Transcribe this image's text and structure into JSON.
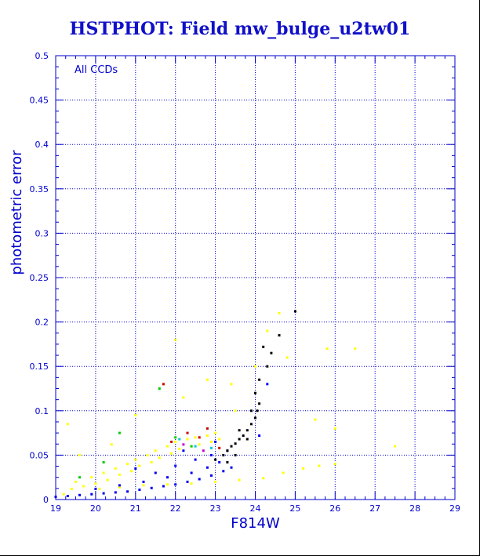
{
  "title": "HSTPHOT: Field mw_bulge_u2tw01",
  "colors": {
    "axis": "#0000cc",
    "title": "#1010c8",
    "main_locus": "#0000ee",
    "upper_scatter": "#ffff00",
    "faint_tail": "#000000",
    "minor": [
      "#00cc00",
      "#cc0000",
      "#00cccc",
      "#cc00cc"
    ]
  },
  "chart_data": {
    "type": "scatter",
    "title": "HSTPHOT: Field mw_bulge_u2tw01",
    "xlabel": "F814W",
    "ylabel": "photometric error",
    "annotation": "All CCDs",
    "xlim": [
      19,
      29
    ],
    "ylim": [
      0,
      0.5
    ],
    "xticks": [
      19,
      20,
      21,
      22,
      23,
      24,
      25,
      26,
      27,
      28,
      29
    ],
    "xtick_labels": [
      "19",
      "20",
      "21",
      "22",
      "23",
      "24",
      "25",
      "26",
      "27",
      "28",
      "29"
    ],
    "yticks": [
      0,
      0.05,
      0.1,
      0.15,
      0.2,
      0.25,
      0.3,
      0.35,
      0.4,
      0.45,
      0.5
    ],
    "ytick_labels": [
      "0",
      "0.05",
      "0.1",
      "0.15",
      "0.2",
      "0.25",
      "0.3",
      "0.35",
      "0.4",
      "0.45",
      "0.5"
    ],
    "grid": true,
    "series": [
      {
        "color": "#ffff00",
        "points": [
          [
            19.2,
            0.006
          ],
          [
            19.4,
            0.012
          ],
          [
            19.5,
            0.02
          ],
          [
            19.7,
            0.015
          ],
          [
            19.9,
            0.025
          ],
          [
            20.0,
            0.018
          ],
          [
            20.2,
            0.03
          ],
          [
            20.3,
            0.022
          ],
          [
            20.5,
            0.035
          ],
          [
            20.6,
            0.028
          ],
          [
            20.8,
            0.04
          ],
          [
            20.9,
            0.032
          ],
          [
            21.0,
            0.045
          ],
          [
            21.1,
            0.038
          ],
          [
            21.3,
            0.05
          ],
          [
            21.4,
            0.042
          ],
          [
            21.5,
            0.055
          ],
          [
            21.6,
            0.047
          ],
          [
            21.8,
            0.06
          ],
          [
            21.9,
            0.052
          ],
          [
            22.0,
            0.065
          ],
          [
            22.1,
            0.057
          ],
          [
            22.3,
            0.068
          ],
          [
            22.4,
            0.06
          ],
          [
            22.5,
            0.07
          ],
          [
            22.6,
            0.062
          ],
          [
            22.8,
            0.072
          ],
          [
            22.9,
            0.065
          ],
          [
            23.0,
            0.075
          ],
          [
            23.1,
            0.068
          ],
          [
            20.1,
            0.012
          ],
          [
            20.6,
            0.014
          ],
          [
            21.2,
            0.016
          ],
          [
            21.8,
            0.017
          ],
          [
            22.4,
            0.018
          ],
          [
            23.0,
            0.02
          ],
          [
            23.6,
            0.022
          ],
          [
            24.2,
            0.024
          ],
          [
            24.7,
            0.03
          ],
          [
            25.2,
            0.035
          ],
          [
            25.6,
            0.038
          ],
          [
            26.0,
            0.04
          ],
          [
            19.6,
            0.05
          ],
          [
            20.4,
            0.062
          ],
          [
            21.7,
            0.13
          ],
          [
            22.2,
            0.115
          ],
          [
            22.8,
            0.135
          ],
          [
            23.5,
            0.1
          ],
          [
            24.0,
            0.15
          ],
          [
            24.3,
            0.19
          ],
          [
            24.6,
            0.21
          ],
          [
            24.8,
            0.16
          ],
          [
            25.5,
            0.09
          ],
          [
            26.5,
            0.17
          ],
          [
            27.5,
            0.06
          ],
          [
            26.0,
            0.08
          ],
          [
            25.8,
            0.17
          ],
          [
            22.0,
            0.18
          ],
          [
            23.4,
            0.13
          ],
          [
            19.3,
            0.085
          ],
          [
            21.0,
            0.095
          ]
        ]
      },
      {
        "color": "#0000ee",
        "points": [
          [
            19.0,
            0.003
          ],
          [
            19.3,
            0.004
          ],
          [
            19.6,
            0.005
          ],
          [
            19.9,
            0.006
          ],
          [
            20.2,
            0.007
          ],
          [
            20.5,
            0.008
          ],
          [
            20.8,
            0.009
          ],
          [
            21.1,
            0.011
          ],
          [
            21.4,
            0.013
          ],
          [
            21.7,
            0.015
          ],
          [
            22.0,
            0.017
          ],
          [
            22.3,
            0.02
          ],
          [
            22.6,
            0.023
          ],
          [
            22.9,
            0.027
          ],
          [
            23.2,
            0.032
          ],
          [
            23.4,
            0.036
          ],
          [
            20.0,
            0.012
          ],
          [
            20.6,
            0.016
          ],
          [
            21.2,
            0.02
          ],
          [
            21.8,
            0.025
          ],
          [
            22.4,
            0.03
          ],
          [
            22.8,
            0.036
          ],
          [
            23.1,
            0.042
          ],
          [
            21.5,
            0.03
          ],
          [
            22.0,
            0.038
          ],
          [
            22.5,
            0.045
          ],
          [
            22.9,
            0.05
          ],
          [
            23.3,
            0.055
          ],
          [
            21.0,
            0.035
          ],
          [
            22.2,
            0.055
          ],
          [
            23.0,
            0.065
          ],
          [
            24.1,
            0.072
          ],
          [
            24.3,
            0.13
          ]
        ]
      },
      {
        "color": "#000000",
        "points": [
          [
            23.0,
            0.045
          ],
          [
            23.2,
            0.05
          ],
          [
            23.3,
            0.055
          ],
          [
            23.4,
            0.06
          ],
          [
            23.5,
            0.063
          ],
          [
            23.6,
            0.068
          ],
          [
            23.7,
            0.072
          ],
          [
            23.8,
            0.078
          ],
          [
            23.9,
            0.085
          ],
          [
            24.0,
            0.092
          ],
          [
            24.05,
            0.1
          ],
          [
            24.1,
            0.108
          ],
          [
            24.0,
            0.12
          ],
          [
            24.1,
            0.135
          ],
          [
            24.3,
            0.15
          ],
          [
            24.4,
            0.165
          ],
          [
            24.2,
            0.172
          ],
          [
            24.6,
            0.185
          ],
          [
            25.0,
            0.212
          ],
          [
            23.6,
            0.078
          ],
          [
            23.8,
            0.068
          ],
          [
            23.3,
            0.042
          ],
          [
            23.5,
            0.05
          ],
          [
            23.9,
            0.1
          ]
        ]
      },
      {
        "color": "#00cc00",
        "points": [
          [
            20.6,
            0.075
          ],
          [
            21.6,
            0.125
          ],
          [
            19.6,
            0.025
          ],
          [
            20.2,
            0.042
          ],
          [
            22.4,
            0.06
          ],
          [
            22.0,
            0.07
          ]
        ]
      },
      {
        "color": "#cc0000",
        "points": [
          [
            21.7,
            0.13
          ],
          [
            22.3,
            0.075
          ],
          [
            22.6,
            0.07
          ],
          [
            23.1,
            0.058
          ],
          [
            21.9,
            0.065
          ],
          [
            22.8,
            0.08
          ]
        ]
      },
      {
        "color": "#00cccc",
        "points": [
          [
            22.1,
            0.068
          ],
          [
            22.5,
            0.06
          ],
          [
            22.9,
            0.058
          ]
        ]
      },
      {
        "color": "#cc00cc",
        "points": [
          [
            22.2,
            0.062
          ],
          [
            22.7,
            0.055
          ]
        ]
      }
    ]
  }
}
